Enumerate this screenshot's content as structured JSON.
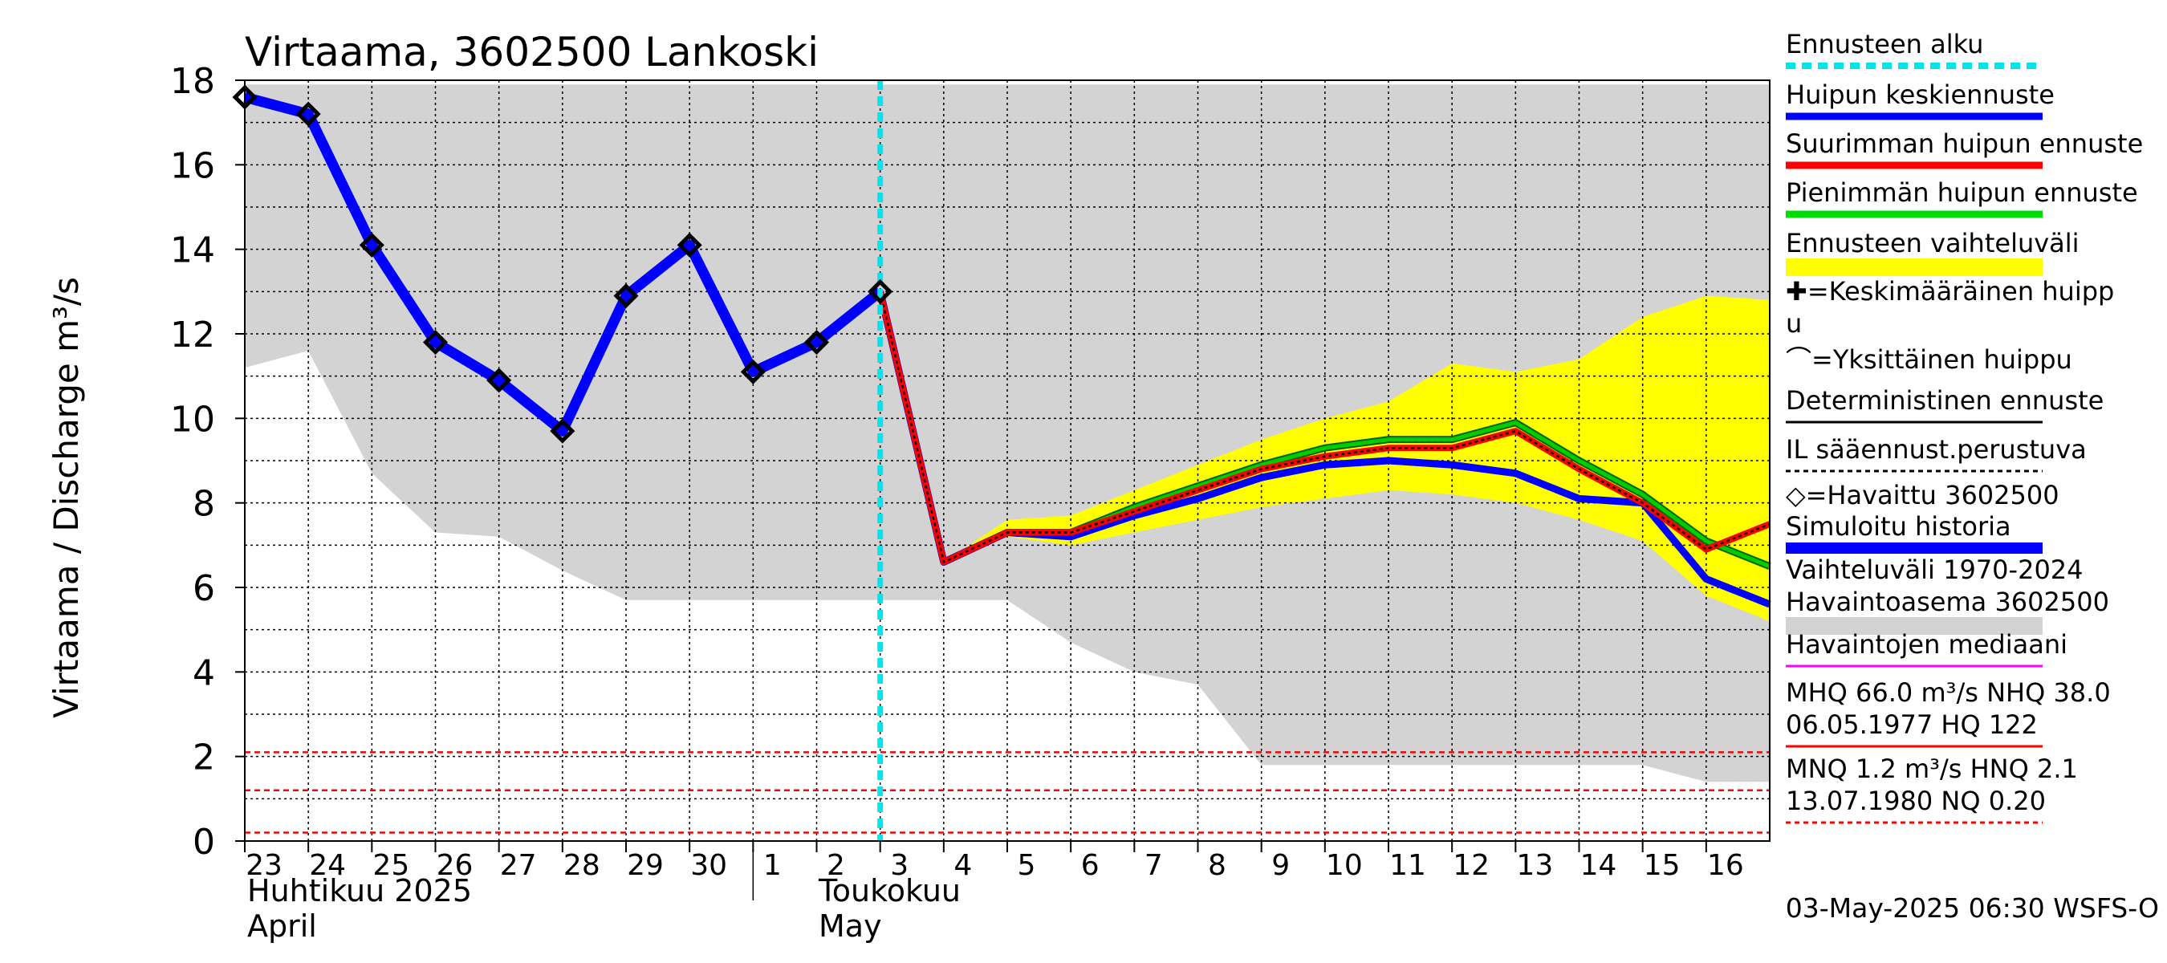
{
  "chart_data": {
    "type": "line",
    "title": "Virtaama, 3602500 Lankoski",
    "ylabel": "Virtaama / Discharge    m³/s",
    "ylim": [
      0,
      18
    ],
    "yticks": [
      0,
      2,
      4,
      6,
      8,
      10,
      12,
      14,
      16,
      18
    ],
    "xlim": [
      23,
      47
    ],
    "day_ticks": [
      {
        "x": 23,
        "label": "23"
      },
      {
        "x": 24,
        "label": "24"
      },
      {
        "x": 25,
        "label": "25"
      },
      {
        "x": 26,
        "label": "26"
      },
      {
        "x": 27,
        "label": "27"
      },
      {
        "x": 28,
        "label": "28"
      },
      {
        "x": 29,
        "label": "29"
      },
      {
        "x": 30,
        "label": "30"
      },
      {
        "x": 31,
        "label": "1"
      },
      {
        "x": 32,
        "label": "2"
      },
      {
        "x": 33,
        "label": "3"
      },
      {
        "x": 34,
        "label": "4"
      },
      {
        "x": 35,
        "label": "5"
      },
      {
        "x": 36,
        "label": "6"
      },
      {
        "x": 37,
        "label": "7"
      },
      {
        "x": 38,
        "label": "8"
      },
      {
        "x": 39,
        "label": "9"
      },
      {
        "x": 40,
        "label": "10"
      },
      {
        "x": 41,
        "label": "11"
      },
      {
        "x": 42,
        "label": "12"
      },
      {
        "x": 43,
        "label": "13"
      },
      {
        "x": 44,
        "label": "14"
      },
      {
        "x": 45,
        "label": "15"
      },
      {
        "x": 46,
        "label": "16"
      }
    ],
    "month_labels": {
      "april_fi": "Huhtikuu  2025",
      "april_en": "April",
      "may_fi": "Toukokuu",
      "may_en": "May"
    },
    "forecast_start_x": 33,
    "history_range": {
      "x": [
        23,
        24,
        25,
        26,
        27,
        28,
        29,
        30,
        31,
        32,
        33,
        34,
        35,
        36,
        37,
        38,
        39,
        40,
        41,
        42,
        43,
        44,
        45,
        46,
        47
      ],
      "upper": [
        17.9,
        17.9,
        17.9,
        17.9,
        17.9,
        17.9,
        17.9,
        17.9,
        17.9,
        17.9,
        17.9,
        17.9,
        17.9,
        17.9,
        17.9,
        17.9,
        17.9,
        17.9,
        17.9,
        17.9,
        17.9,
        17.9,
        17.9,
        17.9,
        17.9
      ],
      "lower": [
        11.2,
        11.6,
        8.7,
        7.3,
        7.2,
        6.4,
        5.7,
        5.7,
        5.7,
        5.7,
        5.7,
        5.7,
        5.7,
        4.7,
        4.0,
        3.7,
        1.8,
        1.8,
        1.8,
        1.8,
        1.8,
        1.8,
        1.8,
        1.4,
        1.4
      ]
    },
    "forecast_range": {
      "x": [
        34,
        35,
        36,
        37,
        38,
        39,
        40,
        41,
        42,
        43,
        44,
        45,
        46,
        47
      ],
      "upper": [
        6.6,
        7.6,
        7.7,
        8.3,
        8.9,
        9.5,
        10.0,
        10.4,
        11.3,
        11.1,
        11.4,
        12.4,
        12.9,
        12.8
      ],
      "lower": [
        6.5,
        7.2,
        7.0,
        7.3,
        7.6,
        7.9,
        8.1,
        8.3,
        8.2,
        8.0,
        7.6,
        7.1,
        5.8,
        5.2
      ]
    },
    "series": [
      {
        "name": "Havaittu 3602500",
        "color": "#0000ff",
        "x": [
          23,
          24,
          25,
          26,
          27,
          28,
          29,
          30,
          31,
          32,
          33
        ],
        "y": [
          17.6,
          17.2,
          14.1,
          11.8,
          10.9,
          9.7,
          12.9,
          14.1,
          11.1,
          11.8,
          13.0
        ]
      },
      {
        "name": "Huipun keskiennuste",
        "color": "#0000ff",
        "x": [
          33,
          34,
          35,
          36,
          37,
          38,
          39,
          40,
          41,
          42,
          43,
          44,
          45,
          46,
          47
        ],
        "y": [
          13.0,
          6.6,
          7.3,
          7.2,
          7.7,
          8.1,
          8.6,
          8.9,
          9.0,
          8.9,
          8.7,
          8.1,
          8.0,
          6.2,
          5.6
        ]
      },
      {
        "name": "Suurimman huipun ennuste",
        "color": "#ff0000",
        "x": [
          33,
          34,
          35,
          36,
          37,
          38,
          39,
          40,
          41,
          42,
          43,
          44,
          45,
          46,
          47
        ],
        "y": [
          13.0,
          6.6,
          7.3,
          7.3,
          7.8,
          8.3,
          8.8,
          9.1,
          9.3,
          9.3,
          9.7,
          8.8,
          8.0,
          6.9,
          7.5
        ]
      },
      {
        "name": "Pienimmän huipun ennuste",
        "color": "#00cc00",
        "x": [
          33,
          34,
          35,
          36,
          37,
          38,
          39,
          40,
          41,
          42,
          43,
          44,
          45,
          46,
          47
        ],
        "y": [
          13.0,
          6.6,
          7.3,
          7.3,
          7.9,
          8.4,
          8.9,
          9.3,
          9.5,
          9.5,
          9.9,
          9.0,
          8.2,
          7.1,
          6.5
        ]
      }
    ],
    "reference_lines": [
      {
        "name": "HNQ",
        "y": 2.1,
        "color": "#ff0000"
      },
      {
        "name": "MNQ",
        "y": 1.2,
        "color": "#ff0000"
      },
      {
        "name": "NQ",
        "y": 0.2,
        "color": "#ff0000"
      }
    ],
    "legend": {
      "position": "right",
      "items": [
        {
          "label": "Ennusteen alku",
          "style": "dashed",
          "color": "#00e5ee"
        },
        {
          "label": "Huipun keskiennuste",
          "style": "line",
          "color": "#0000ff"
        },
        {
          "label": "Suurimman huipun ennuste",
          "style": "line",
          "color": "#ff0000"
        },
        {
          "label": "Pienimmän huipun ennuste",
          "style": "line",
          "color": "#00dd00"
        },
        {
          "label": "Ennusteen vaihteluväli",
          "style": "band",
          "color": "#ffff00"
        },
        {
          "label": "✚=Keskimääräinen huipp",
          "label2": "u",
          "style": "none",
          "color": "#000000"
        },
        {
          "label": "⌒=Yksittäinen huippu",
          "style": "none",
          "color": "#000000"
        },
        {
          "label": "Deterministinen ennuste",
          "style": "line",
          "color": "#000000"
        },
        {
          "label": "IL sääennust.perustuva",
          "style": "dotted",
          "color": "#000000"
        },
        {
          "label": "◇=Havaittu 3602500",
          "style": "none",
          "color": "#000000"
        },
        {
          "label": "Simuloitu historia",
          "style": "thick",
          "color": "#0000ff"
        },
        {
          "label": "Vaihteluväli 1970-2024",
          "label2": " Havaintoasema 3602500",
          "style": "band",
          "color": "#d3d3d3"
        },
        {
          "label": "Havaintojen mediaani",
          "style": "line",
          "color": "#ff00ff"
        },
        {
          "label": "MHQ 66.0 m³/s NHQ 38.0",
          "label2": "06.05.1977 HQ  122",
          "style": "line",
          "color": "#ff0000"
        },
        {
          "label": "MNQ  1.2 m³/s HNQ  2.1",
          "label2": "13.07.1980 NQ 0.20",
          "style": "dotted",
          "color": "#ff0000"
        }
      ]
    },
    "footer": "03-May-2025 06:30 WSFS-O"
  }
}
